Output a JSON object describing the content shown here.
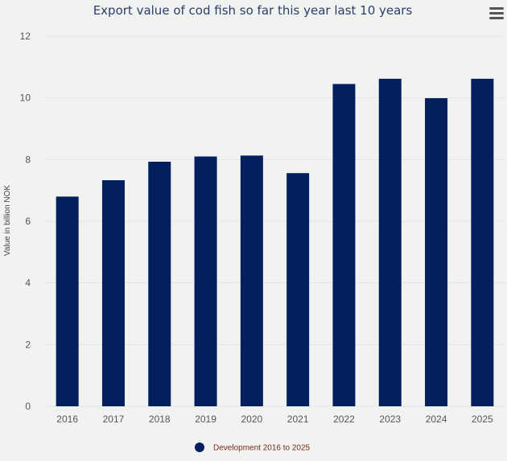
{
  "chart_data": {
    "type": "bar",
    "title": "Export value of cod fish so far this year last 10 years",
    "ylabel": "Value in billion NOK",
    "xlabel": "",
    "categories": [
      "2016",
      "2017",
      "2018",
      "2019",
      "2020",
      "2021",
      "2022",
      "2023",
      "2024",
      "2025"
    ],
    "series": [
      {
        "name": "Development 2016 to 2025",
        "values": [
          6.8,
          7.33,
          7.93,
          8.1,
          8.13,
          7.56,
          10.45,
          10.62,
          9.99,
          10.62
        ]
      }
    ],
    "ylim": [
      0,
      12
    ],
    "yticks": [
      0,
      2,
      4,
      6,
      8,
      10,
      12
    ],
    "grid": true,
    "legend_position": "bottom-center"
  },
  "colors": {
    "bar": "#041f5e",
    "background": "#f1f3f1"
  },
  "menu": {
    "icon": "hamburger-menu-icon"
  }
}
